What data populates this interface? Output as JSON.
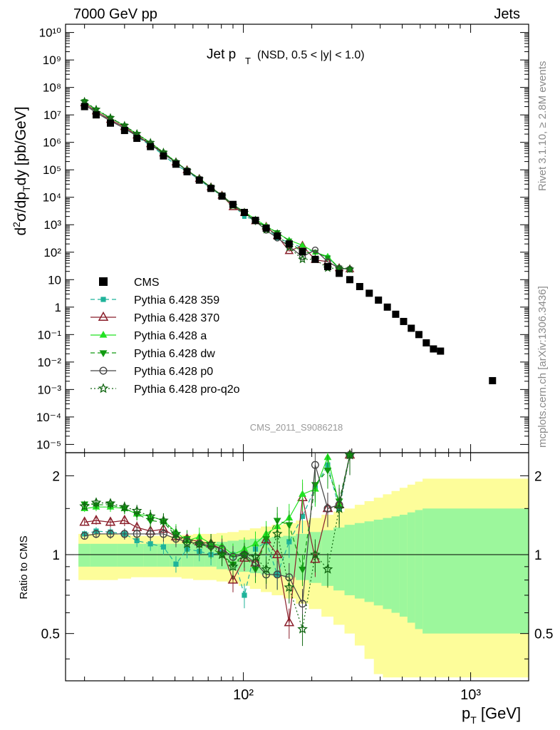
{
  "header": {
    "energy": "7000 GeV pp",
    "process": "Jets",
    "rivet": "Rivet 3.1.10, ≥ 2.8M events",
    "mcplots": "mcplots.cern.ch [arXiv:1306.3436]",
    "analysis_id": "CMS_2011_S9086218"
  },
  "chart_data": [
    {
      "type": "line",
      "panel": "main",
      "title_main": "Jet p",
      "title_sub": "T",
      "title_extra": "(NSD, 0.5 < |y| < 1.0)",
      "ylabel": "d²σ/dp_T dy [pb/GeV]",
      "xlabel": "p_T [GeV]",
      "x_scale": "log",
      "y_scale": "log",
      "xlim": [
        16.5,
        1800
      ],
      "ylim": [
        5e-06,
        20000000000.0
      ],
      "x_ticks": [
        "10²",
        "10³"
      ],
      "y_ticks": [
        "10⁻⁵",
        "10⁻⁴",
        "10⁻³",
        "10⁻²",
        "10⁻¹",
        "1",
        "10",
        "10²",
        "10³",
        "10⁴",
        "10⁵",
        "10⁶",
        "10⁷",
        "10⁸",
        "10⁹",
        "10¹⁰"
      ],
      "legend_position": "left-middle",
      "series": [
        {
          "name": "CMS",
          "color": "#000000",
          "marker": "square",
          "linestyle": "none",
          "x": [
            20,
            22.5,
            26,
            30,
            34,
            39,
            44.5,
            50.5,
            56.5,
            64,
            72,
            80.5,
            90,
            101,
            113,
            126,
            141,
            159,
            182,
            207,
            235,
            264,
            294,
            325,
            358,
            393,
            430,
            468,
            507,
            548,
            592,
            638,
            686,
            737,
            1248
          ],
          "y": [
            20000000.0,
            10000000.0,
            5000000.0,
            2700000.0,
            1400000.0,
            700000.0,
            320000.0,
            160000.0,
            85000.0,
            42000.0,
            21000.0,
            11000.0,
            5500.0,
            2800.0,
            1450.0,
            750,
            390,
            200,
            105,
            55,
            30,
            17,
            10,
            5.6,
            3.2,
            1.8,
            1.0,
            0.55,
            0.3,
            0.17,
            0.1,
            0.05,
            0.03,
            0.025,
            0.0021
          ]
        },
        {
          "name": "Pythia 6.428 359",
          "color": "#1fb39a",
          "marker": "square-small",
          "linestyle": "dashed",
          "x": [],
          "y": []
        },
        {
          "name": "Pythia 6.428 370",
          "color": "#8a1f2b",
          "marker": "triangle-open",
          "linestyle": "solid",
          "x": [],
          "y": []
        },
        {
          "name": "Pythia 6.428 a",
          "color": "#22e222",
          "marker": "triangle-filled",
          "linestyle": "solid",
          "x": [],
          "y": []
        },
        {
          "name": "Pythia 6.428 dw",
          "color": "#109a10",
          "marker": "triangle-down",
          "linestyle": "dashed",
          "x": [],
          "y": []
        },
        {
          "name": "Pythia 6.428 p0",
          "color": "#444444",
          "marker": "circle-open",
          "linestyle": "solid",
          "x": [],
          "y": []
        },
        {
          "name": "Pythia 6.428 pro-q2o",
          "color": "#116611",
          "marker": "star",
          "linestyle": "dotted",
          "x": [],
          "y": []
        }
      ]
    },
    {
      "type": "line",
      "panel": "ratio",
      "ylabel": "Ratio to CMS",
      "y_scale": "log",
      "ylim": [
        0.33,
        2.45
      ],
      "y_ticks": [
        "0.5",
        "1",
        "2"
      ],
      "x": [
        20,
        22.5,
        26,
        30,
        34,
        39,
        44.5,
        50.5,
        56.5,
        64,
        72,
        80.5,
        90,
        101,
        113,
        126,
        141,
        159,
        182,
        207,
        235,
        264,
        294
      ],
      "series": [
        {
          "name": "Pythia 6.428 359",
          "values": [
            1.2,
            1.23,
            1.22,
            1.2,
            1.13,
            1.1,
            1.07,
            0.92,
            1.05,
            1.03,
            1.0,
            1.02,
            1.0,
            0.7,
            1.05,
            1.12,
            0.84,
            1.12,
            1.4,
            1.8,
            2.2,
            1.5,
            2.4
          ]
        },
        {
          "name": "Pythia 6.428 370",
          "values": [
            1.33,
            1.35,
            1.33,
            1.35,
            1.27,
            1.23,
            1.25,
            1.17,
            1.15,
            1.12,
            1.1,
            1.05,
            0.8,
            0.97,
            0.93,
            1.14,
            1.0,
            0.55,
            1.65,
            0.96,
            1.5,
            1.55,
            2.4
          ]
        },
        {
          "name": "Pythia 6.428 a",
          "values": [
            1.5,
            1.52,
            1.52,
            1.5,
            1.43,
            1.4,
            1.35,
            1.22,
            1.13,
            1.17,
            1.1,
            1.08,
            1.0,
            1.05,
            1.1,
            1.2,
            1.28,
            1.38,
            1.7,
            1.78,
            2.35,
            1.55,
            2.4
          ]
        },
        {
          "name": "Pythia 6.428 dw",
          "values": [
            1.56,
            1.55,
            1.55,
            1.5,
            1.43,
            1.35,
            1.33,
            1.18,
            1.15,
            1.1,
            1.06,
            1.0,
            0.92,
            1.0,
            0.88,
            1.15,
            1.35,
            1.3,
            0.88,
            1.85,
            2.1,
            1.6,
            2.4
          ]
        },
        {
          "name": "Pythia 6.428 p0",
          "values": [
            1.18,
            1.2,
            1.2,
            1.2,
            1.2,
            1.2,
            1.2,
            1.15,
            1.12,
            1.1,
            1.08,
            1.05,
            0.98,
            1.0,
            0.93,
            0.84,
            0.84,
            0.82,
            0.65,
            2.2,
            1.5,
            1.55,
            2.4
          ]
        },
        {
          "name": "Pythia 6.428 pro-q2o",
          "values": [
            1.53,
            1.58,
            1.57,
            1.52,
            1.47,
            1.4,
            1.35,
            1.2,
            1.1,
            1.1,
            1.1,
            1.0,
            0.9,
            1.0,
            0.98,
            0.88,
            1.2,
            0.75,
            0.52,
            1.0,
            0.88,
            1.5,
            2.4
          ]
        }
      ],
      "band_green_half": [
        0.1,
        0.1,
        0.1,
        0.1,
        0.1,
        0.1,
        0.1,
        0.1,
        0.1,
        0.1,
        0.1,
        0.12,
        0.13,
        0.14,
        0.15,
        0.16,
        0.17,
        0.18,
        0.2,
        0.22,
        0.24,
        0.27,
        0.3,
        0.32,
        0.34,
        0.36,
        0.38,
        0.4,
        0.42,
        0.45,
        0.48,
        0.5
      ],
      "band_yellow_half": [
        0.2,
        0.2,
        0.2,
        0.19,
        0.18,
        0.18,
        0.18,
        0.18,
        0.19,
        0.2,
        0.2,
        0.21,
        0.22,
        0.24,
        0.26,
        0.28,
        0.3,
        0.32,
        0.35,
        0.38,
        0.42,
        0.46,
        0.5,
        0.55,
        0.6,
        0.65,
        0.7,
        0.75,
        0.8,
        0.85,
        0.9,
        0.95
      ]
    }
  ]
}
